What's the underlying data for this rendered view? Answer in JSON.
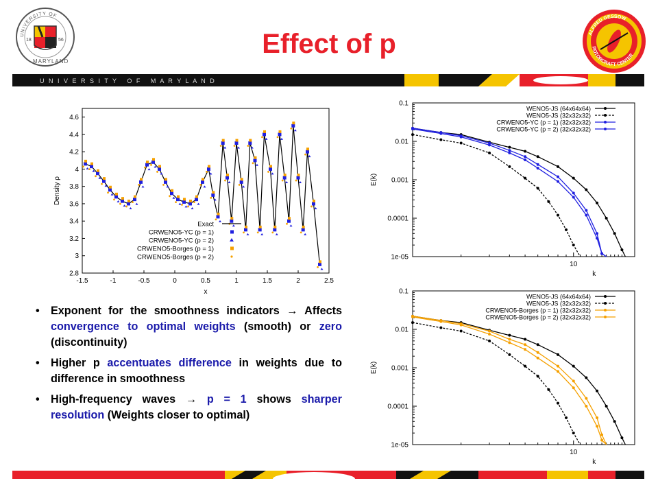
{
  "slide": {
    "title": "Effect of p",
    "band_text": "U N I V E R S I T Y   O F   M A R Y L A N D",
    "logos": {
      "umd": {
        "ring_text": "UNIVERSITY OF MARYLAND",
        "year_left": "18",
        "year_right": "56"
      },
      "gessow": {
        "ring_text": "ALFRED GESSOW ROTORCRAFT CENTER"
      }
    },
    "bullets": [
      {
        "segments": [
          {
            "text": "Exponent for the smoothness indicators ",
            "hl": false
          },
          {
            "text": "→",
            "hl": false
          },
          {
            "text": " Affects ",
            "hl": false
          },
          {
            "text": "convergence to optimal weights",
            "hl": true
          },
          {
            "text": " (smooth) or ",
            "hl": false
          },
          {
            "text": "zero",
            "hl": true
          },
          {
            "text": " (discontinuity)",
            "hl": false
          }
        ]
      },
      {
        "segments": [
          {
            "text": "Higher p ",
            "hl": false
          },
          {
            "text": "accentuates difference",
            "hl": true
          },
          {
            "text": " in weights due to difference in smoothness",
            "hl": false
          }
        ]
      },
      {
        "segments": [
          {
            "text": "High-frequency waves ",
            "hl": false
          },
          {
            "text": "→",
            "hl": false
          },
          {
            "text": " ",
            "hl": false
          },
          {
            "text": "p = 1",
            "hl": true
          },
          {
            "text": " shows ",
            "hl": false
          },
          {
            "text": "sharper resolution",
            "hl": true
          },
          {
            "text": " (Weights closer to optimal)",
            "hl": false
          }
        ]
      }
    ],
    "colors": {
      "umd_red": "#e8202a",
      "umd_gold": "#f5c400",
      "highlight": "#1a1aaa",
      "blue": "#1f1fe0",
      "orange": "#f5a000"
    }
  },
  "chart_data": [
    {
      "type": "scatter",
      "title": "",
      "xlabel": "x",
      "ylabel": "Density ρ",
      "xlim": [
        -1.5,
        2.5
      ],
      "ylim": [
        2.8,
        4.7
      ],
      "xticks": [
        "-1.5",
        "-1",
        "-0.5",
        "0",
        "0.5",
        "1",
        "1.5",
        "2",
        "2.5"
      ],
      "yticks": [
        "2.8",
        "3",
        "3.2",
        "3.4",
        "3.6",
        "3.8",
        "4",
        "4.2",
        "4.4",
        "4.6"
      ],
      "legend": "bottom-left",
      "series": [
        {
          "name": "Exact",
          "style": "line",
          "color": "#000000"
        },
        {
          "name": "CRWENO5-YC (p = 1)",
          "style": "square",
          "color": "#1f1fe0"
        },
        {
          "name": "CRWENO5-YC (p = 2)",
          "style": "triangle",
          "color": "#1f1fe0"
        },
        {
          "name": "CRWENO5-Borges (p = 1)",
          "style": "square",
          "color": "#f5a000"
        },
        {
          "name": "CRWENO5-Borges (p = 2)",
          "style": "dot",
          "color": "#f5a000"
        }
      ],
      "points": [
        [
          -1.45,
          4.06
        ],
        [
          -1.35,
          4.03
        ],
        [
          -1.25,
          3.95
        ],
        [
          -1.15,
          3.86
        ],
        [
          -1.05,
          3.76
        ],
        [
          -0.95,
          3.68
        ],
        [
          -0.85,
          3.63
        ],
        [
          -0.75,
          3.6
        ],
        [
          -0.65,
          3.65
        ],
        [
          -0.55,
          3.85
        ],
        [
          -0.45,
          4.05
        ],
        [
          -0.35,
          4.08
        ],
        [
          -0.25,
          4.0
        ],
        [
          -0.15,
          3.85
        ],
        [
          -0.05,
          3.72
        ],
        [
          0.05,
          3.65
        ],
        [
          0.15,
          3.62
        ],
        [
          0.25,
          3.6
        ],
        [
          0.35,
          3.65
        ],
        [
          0.45,
          3.85
        ],
        [
          0.55,
          4.0
        ],
        [
          0.62,
          3.7
        ],
        [
          0.7,
          3.45
        ],
        [
          0.78,
          4.3
        ],
        [
          0.85,
          3.9
        ],
        [
          0.92,
          3.4
        ],
        [
          1.0,
          4.3
        ],
        [
          1.08,
          3.85
        ],
        [
          1.15,
          3.3
        ],
        [
          1.22,
          4.3
        ],
        [
          1.3,
          4.1
        ],
        [
          1.38,
          3.3
        ],
        [
          1.45,
          4.4
        ],
        [
          1.55,
          4.0
        ],
        [
          1.62,
          3.3
        ],
        [
          1.7,
          4.4
        ],
        [
          1.78,
          3.9
        ],
        [
          1.85,
          3.4
        ],
        [
          1.92,
          4.5
        ],
        [
          2.0,
          3.9
        ],
        [
          2.08,
          3.3
        ],
        [
          2.15,
          4.2
        ],
        [
          2.25,
          3.6
        ],
        [
          2.35,
          2.9
        ]
      ]
    },
    {
      "type": "line",
      "title": "",
      "xlabel": "k",
      "ylabel": "E(k)",
      "xscale": "log",
      "yscale": "log",
      "xtick_labels": [
        "10"
      ],
      "ytick_labels": [
        "0.1",
        "0.01",
        "0.001",
        "0.0001",
        "1e-05"
      ],
      "legend": "top-right",
      "series": [
        {
          "name": "WENO5-JS (64x64x64)",
          "color": "#000000",
          "dash": false,
          "points": [
            [
              1,
              0.022
            ],
            [
              1.5,
              0.017
            ],
            [
              2,
              0.015
            ],
            [
              3,
              0.0095
            ],
            [
              4,
              0.007
            ],
            [
              5,
              0.0055
            ],
            [
              6,
              0.004
            ],
            [
              8,
              0.0022
            ],
            [
              10,
              0.0011
            ],
            [
              12,
              0.00055
            ],
            [
              14,
              0.00025
            ],
            [
              16,
              0.0001
            ],
            [
              18,
              4e-05
            ],
            [
              20,
              1.5e-05
            ],
            [
              21,
              9e-06
            ]
          ]
        },
        {
          "name": "WENO5-JS (32x32x32)",
          "color": "#000000",
          "dash": true,
          "points": [
            [
              1,
              0.015
            ],
            [
              1.5,
              0.011
            ],
            [
              2,
              0.009
            ],
            [
              3,
              0.005
            ],
            [
              4,
              0.0022
            ],
            [
              5,
              0.0011
            ],
            [
              6,
              0.0006
            ],
            [
              7,
              0.00027
            ],
            [
              8,
              0.00012
            ],
            [
              9,
              5e-05
            ],
            [
              10,
              2e-05
            ],
            [
              11,
              9e-06
            ]
          ]
        },
        {
          "name": "CRWENO5-YC (p = 1) (32x32x32)",
          "color": "#1f1fe0",
          "dash": false,
          "points": [
            [
              1,
              0.022
            ],
            [
              1.5,
              0.017
            ],
            [
              2,
              0.014
            ],
            [
              3,
              0.009
            ],
            [
              4,
              0.0058
            ],
            [
              5,
              0.004
            ],
            [
              6,
              0.0025
            ],
            [
              8,
              0.0012
            ],
            [
              10,
              0.00045
            ],
            [
              12,
              0.00016
            ],
            [
              14,
              4e-05
            ],
            [
              15,
              1.2e-05
            ],
            [
              16,
              9e-06
            ]
          ]
        },
        {
          "name": "CRWENO5-YC (p = 2) (32x32x32)",
          "color": "#1f1fe0",
          "dash": false,
          "points": [
            [
              1,
              0.021
            ],
            [
              1.5,
              0.016
            ],
            [
              2,
              0.013
            ],
            [
              3,
              0.008
            ],
            [
              4,
              0.005
            ],
            [
              5,
              0.0033
            ],
            [
              6,
              0.002
            ],
            [
              8,
              0.0009
            ],
            [
              10,
              0.00035
            ],
            [
              12,
              0.00012
            ],
            [
              14,
              3e-05
            ],
            [
              15,
              1.2e-05
            ],
            [
              16,
              9e-06
            ]
          ]
        }
      ]
    },
    {
      "type": "line",
      "title": "",
      "xlabel": "k",
      "ylabel": "E(k)",
      "xscale": "log",
      "yscale": "log",
      "xtick_labels": [
        "10"
      ],
      "ytick_labels": [
        "0.1",
        "0.01",
        "0.001",
        "0.0001",
        "1e-05"
      ],
      "legend": "top-right",
      "series": [
        {
          "name": "WENO5-JS (64x64x64)",
          "color": "#000000",
          "dash": false,
          "points": [
            [
              1,
              0.022
            ],
            [
              1.5,
              0.017
            ],
            [
              2,
              0.015
            ],
            [
              3,
              0.0095
            ],
            [
              4,
              0.007
            ],
            [
              5,
              0.0055
            ],
            [
              6,
              0.004
            ],
            [
              8,
              0.0022
            ],
            [
              10,
              0.0011
            ],
            [
              12,
              0.00055
            ],
            [
              14,
              0.00025
            ],
            [
              16,
              0.0001
            ],
            [
              18,
              4e-05
            ],
            [
              20,
              1.5e-05
            ],
            [
              21,
              9e-06
            ]
          ]
        },
        {
          "name": "WENO5-JS (32x32x32)",
          "color": "#000000",
          "dash": true,
          "points": [
            [
              1,
              0.015
            ],
            [
              1.5,
              0.011
            ],
            [
              2,
              0.009
            ],
            [
              3,
              0.005
            ],
            [
              4,
              0.0022
            ],
            [
              5,
              0.0011
            ],
            [
              6,
              0.0006
            ],
            [
              7,
              0.00027
            ],
            [
              8,
              0.00012
            ],
            [
              9,
              5e-05
            ],
            [
              10,
              2e-05
            ],
            [
              11,
              9e-06
            ]
          ]
        },
        {
          "name": "CRWENO5-Borges (p = 1) (32x32x32)",
          "color": "#f5a000",
          "dash": false,
          "points": [
            [
              1,
              0.022
            ],
            [
              1.5,
              0.017
            ],
            [
              2,
              0.014
            ],
            [
              3,
              0.009
            ],
            [
              4,
              0.0055
            ],
            [
              5,
              0.004
            ],
            [
              6,
              0.0025
            ],
            [
              8,
              0.0011
            ],
            [
              10,
              0.00045
            ],
            [
              12,
              0.00016
            ],
            [
              14,
              5e-05
            ],
            [
              15,
              1.8e-05
            ],
            [
              16,
              9e-06
            ]
          ]
        },
        {
          "name": "CRWENO5-Borges (p = 2) (32x32x32)",
          "color": "#f5a000",
          "dash": false,
          "points": [
            [
              1,
              0.021
            ],
            [
              1.5,
              0.016
            ],
            [
              2,
              0.013
            ],
            [
              3,
              0.0075
            ],
            [
              4,
              0.0045
            ],
            [
              5,
              0.003
            ],
            [
              6,
              0.0018
            ],
            [
              8,
              0.0008
            ],
            [
              10,
              0.0003
            ],
            [
              12,
              0.0001
            ],
            [
              14,
              3e-05
            ],
            [
              15,
              1.3e-05
            ],
            [
              16,
              9e-06
            ]
          ]
        }
      ]
    }
  ]
}
